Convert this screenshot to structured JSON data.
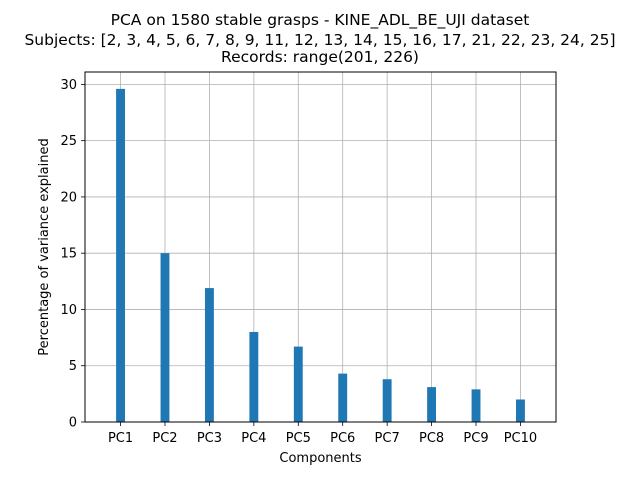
{
  "chart_data": {
    "type": "bar",
    "title": [
      "PCA on 1580 stable grasps - KINE_ADL_BE_UJI dataset",
      "Subjects: [2, 3, 4, 5, 6, 7, 8, 9, 11, 12, 13, 14, 15, 16, 17, 21, 22, 23, 24, 25]",
      "Records: range(201, 226)"
    ],
    "xlabel": "Components",
    "ylabel": "Percentage of variance explained",
    "categories": [
      "PC1",
      "PC2",
      "PC3",
      "PC4",
      "PC5",
      "PC6",
      "PC7",
      "PC8",
      "PC9",
      "PC10"
    ],
    "values": [
      29.6,
      15.0,
      11.9,
      8.0,
      6.7,
      4.3,
      3.8,
      3.1,
      2.9,
      2.0
    ],
    "ylim": [
      0,
      31.1
    ],
    "yticks": [
      0,
      5,
      10,
      15,
      20,
      25,
      30
    ],
    "grid": true,
    "color": "#1f77b4"
  }
}
